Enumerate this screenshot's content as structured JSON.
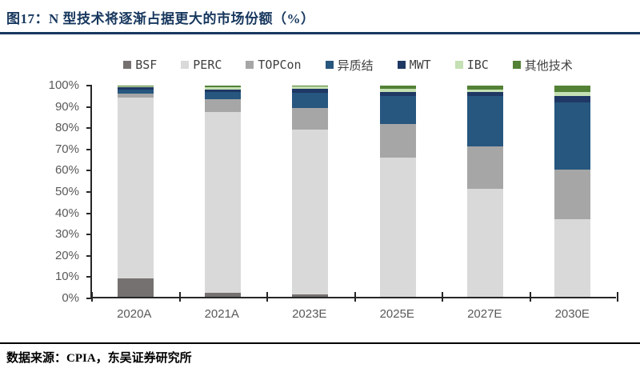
{
  "title": {
    "text": "图17：N 型技术将逐渐占据更大的市场份额（%）"
  },
  "footer": {
    "source_label": "数据来源：CPIA，东吴证券研究所"
  },
  "colors": {
    "title_navy": "#17375E",
    "axis_line": "#262626",
    "axis_label_gray": "#595959",
    "legend_text": "#404040"
  },
  "chart_data": {
    "type": "bar",
    "stacked": true,
    "title": "N 型技术将逐渐占据更大的市场份额（%）",
    "xlabel": "",
    "ylabel": "",
    "ylim": [
      0,
      100
    ],
    "grid": false,
    "legend_position": "top",
    "categories": [
      "2020A",
      "2021A",
      "2023E",
      "2025E",
      "2027E",
      "2030E"
    ],
    "ytick_labels": [
      "0%",
      "10%",
      "20%",
      "30%",
      "40%",
      "50%",
      "60%",
      "70%",
      "80%",
      "90%",
      "100%"
    ],
    "series": [
      {
        "name": "BSF",
        "color": "#767171",
        "values": [
          8.8,
          1.8,
          1.0,
          0.0,
          0.0,
          0.0
        ]
      },
      {
        "name": "PERC",
        "color": "#D9D9D9",
        "values": [
          85.4,
          85.8,
          78.2,
          65.8,
          51.0,
          36.6
        ]
      },
      {
        "name": "TOPCon",
        "color": "#A6A6A6",
        "values": [
          2.0,
          5.9,
          10.3,
          16.2,
          20.3,
          23.8
        ]
      },
      {
        "name": "异质结",
        "color": "#27567F",
        "values": [
          2.0,
          3.3,
          7.0,
          13.0,
          23.7,
          31.6
        ]
      },
      {
        "name": "MWT",
        "color": "#1F3864",
        "values": [
          1.2,
          1.2,
          2.0,
          2.0,
          2.0,
          3.0
        ]
      },
      {
        "name": "IBC",
        "color": "#C5E0B4",
        "values": [
          0.3,
          1.3,
          1.0,
          1.5,
          1.3,
          2.0
        ]
      },
      {
        "name": "其他技术",
        "color": "#538135",
        "values": [
          0.3,
          0.7,
          0.5,
          1.5,
          1.7,
          3.0
        ]
      }
    ]
  }
}
